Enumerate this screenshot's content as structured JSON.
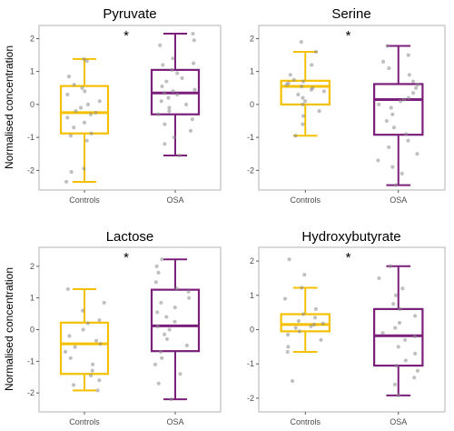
{
  "chart_data": [
    {
      "type": "box",
      "title": "Pyruvate",
      "ylabel": "Normalised concentration",
      "categories": [
        "Controls",
        "OSA"
      ],
      "ylim": [
        -2.6,
        2.4
      ],
      "yticks": [
        -2,
        -1,
        0,
        1,
        2
      ],
      "annotation": "*",
      "colors": [
        "#f5c000",
        "#7a1f7a"
      ],
      "boxes": [
        {
          "name": "Controls",
          "whisker_low": -2.35,
          "q1": -0.88,
          "median": -0.25,
          "q3": 0.56,
          "whisker_high": 1.38,
          "points": [
            1.38,
            1.32,
            0.85,
            0.6,
            0.5,
            0.4,
            0.3,
            0.1,
            0.0,
            -0.1,
            -0.2,
            -0.25,
            -0.3,
            -0.4,
            -0.55,
            -0.7,
            -0.88,
            -0.95,
            -1.1,
            -1.95,
            -2.05,
            -2.35
          ]
        },
        {
          "name": "OSA",
          "whisker_low": -1.55,
          "q1": -0.3,
          "median": 0.35,
          "q3": 1.05,
          "whisker_high": 2.15,
          "points": [
            2.15,
            1.95,
            1.8,
            1.4,
            1.25,
            1.2,
            1.05,
            0.95,
            0.8,
            0.7,
            0.55,
            0.45,
            0.4,
            0.35,
            0.3,
            0.2,
            0.1,
            0.0,
            -0.1,
            -0.2,
            -0.3,
            -0.45,
            -0.6,
            -0.8,
            -1.0,
            -1.2,
            -1.55
          ]
        }
      ]
    },
    {
      "type": "box",
      "title": "Serine",
      "ylabel": "",
      "categories": [
        "Controls",
        "OSA"
      ],
      "ylim": [
        -2.6,
        2.4
      ],
      "yticks": [
        -2,
        -1,
        0,
        1,
        2
      ],
      "annotation": "*",
      "colors": [
        "#f5c000",
        "#7a1f7a"
      ],
      "boxes": [
        {
          "name": "Controls",
          "whisker_low": -0.95,
          "q1": 0.0,
          "median": 0.55,
          "q3": 0.72,
          "whisker_high": 1.6,
          "points": [
            1.9,
            1.6,
            1.2,
            0.9,
            0.75,
            0.7,
            0.65,
            0.6,
            0.55,
            0.5,
            0.45,
            0.4,
            0.3,
            0.2,
            0.1,
            0.0,
            -0.2,
            -0.35,
            -0.6,
            -0.95
          ]
        },
        {
          "name": "OSA",
          "whisker_low": -2.45,
          "q1": -0.92,
          "median": 0.15,
          "q3": 0.62,
          "whisker_high": 1.78,
          "points": [
            1.78,
            1.5,
            1.3,
            1.1,
            0.9,
            0.7,
            0.6,
            0.5,
            0.35,
            0.2,
            0.15,
            0.1,
            0.0,
            -0.1,
            -0.3,
            -0.5,
            -0.7,
            -0.9,
            -1.1,
            -1.3,
            -1.5,
            -1.7,
            -1.9,
            -2.1,
            -2.45
          ]
        }
      ]
    },
    {
      "type": "box",
      "title": "Lactose",
      "ylabel": "Normalised concentration",
      "categories": [
        "Controls",
        "OSA"
      ],
      "ylim": [
        -2.6,
        2.6
      ],
      "yticks": [
        -2,
        -1,
        0,
        1,
        2
      ],
      "annotation": "*",
      "colors": [
        "#f5c000",
        "#7a1f7a"
      ],
      "boxes": [
        {
          "name": "Controls",
          "whisker_low": -1.92,
          "q1": -1.4,
          "median": -0.45,
          "q3": 0.22,
          "whisker_high": 1.28,
          "points": [
            1.28,
            0.85,
            0.6,
            0.3,
            0.2,
            0.0,
            -0.2,
            -0.35,
            -0.45,
            -0.55,
            -0.7,
            -0.9,
            -1.1,
            -1.3,
            -1.45,
            -1.6,
            -1.75,
            -1.92
          ]
        },
        {
          "name": "OSA",
          "whisker_low": -2.2,
          "q1": -0.68,
          "median": 0.12,
          "q3": 1.26,
          "whisker_high": 2.22,
          "points": [
            2.22,
            2.0,
            1.8,
            1.5,
            1.3,
            1.2,
            1.0,
            0.85,
            0.7,
            0.55,
            0.4,
            0.25,
            0.1,
            0.0,
            -0.15,
            -0.3,
            -0.5,
            -0.7,
            -0.9,
            -1.1,
            -1.4,
            -1.7,
            -2.2
          ]
        }
      ]
    },
    {
      "type": "box",
      "title": "Hydroxybutyrate",
      "ylabel": "",
      "categories": [
        "Controls",
        "OSA"
      ],
      "ylim": [
        -2.4,
        2.4
      ],
      "yticks": [
        -2,
        -1,
        0,
        1,
        2
      ],
      "annotation": "*",
      "colors": [
        "#f5c000",
        "#7a1f7a"
      ],
      "boxes": [
        {
          "name": "Controls",
          "whisker_low": -0.65,
          "q1": -0.05,
          "median": 0.15,
          "q3": 0.45,
          "whisker_high": 1.22,
          "points": [
            2.05,
            1.6,
            1.22,
            0.9,
            0.6,
            0.45,
            0.35,
            0.25,
            0.18,
            0.15,
            0.1,
            0.05,
            -0.05,
            -0.15,
            -0.3,
            -0.5,
            -0.65,
            -1.5
          ]
        },
        {
          "name": "OSA",
          "whisker_low": -1.92,
          "q1": -1.05,
          "median": -0.18,
          "q3": 0.6,
          "whisker_high": 1.85,
          "points": [
            1.85,
            1.5,
            1.2,
            1.0,
            0.75,
            0.6,
            0.4,
            0.2,
            0.05,
            -0.1,
            -0.2,
            -0.3,
            -0.5,
            -0.7,
            -0.9,
            -1.05,
            -1.2,
            -1.4,
            -1.6,
            -1.92
          ]
        }
      ]
    }
  ]
}
